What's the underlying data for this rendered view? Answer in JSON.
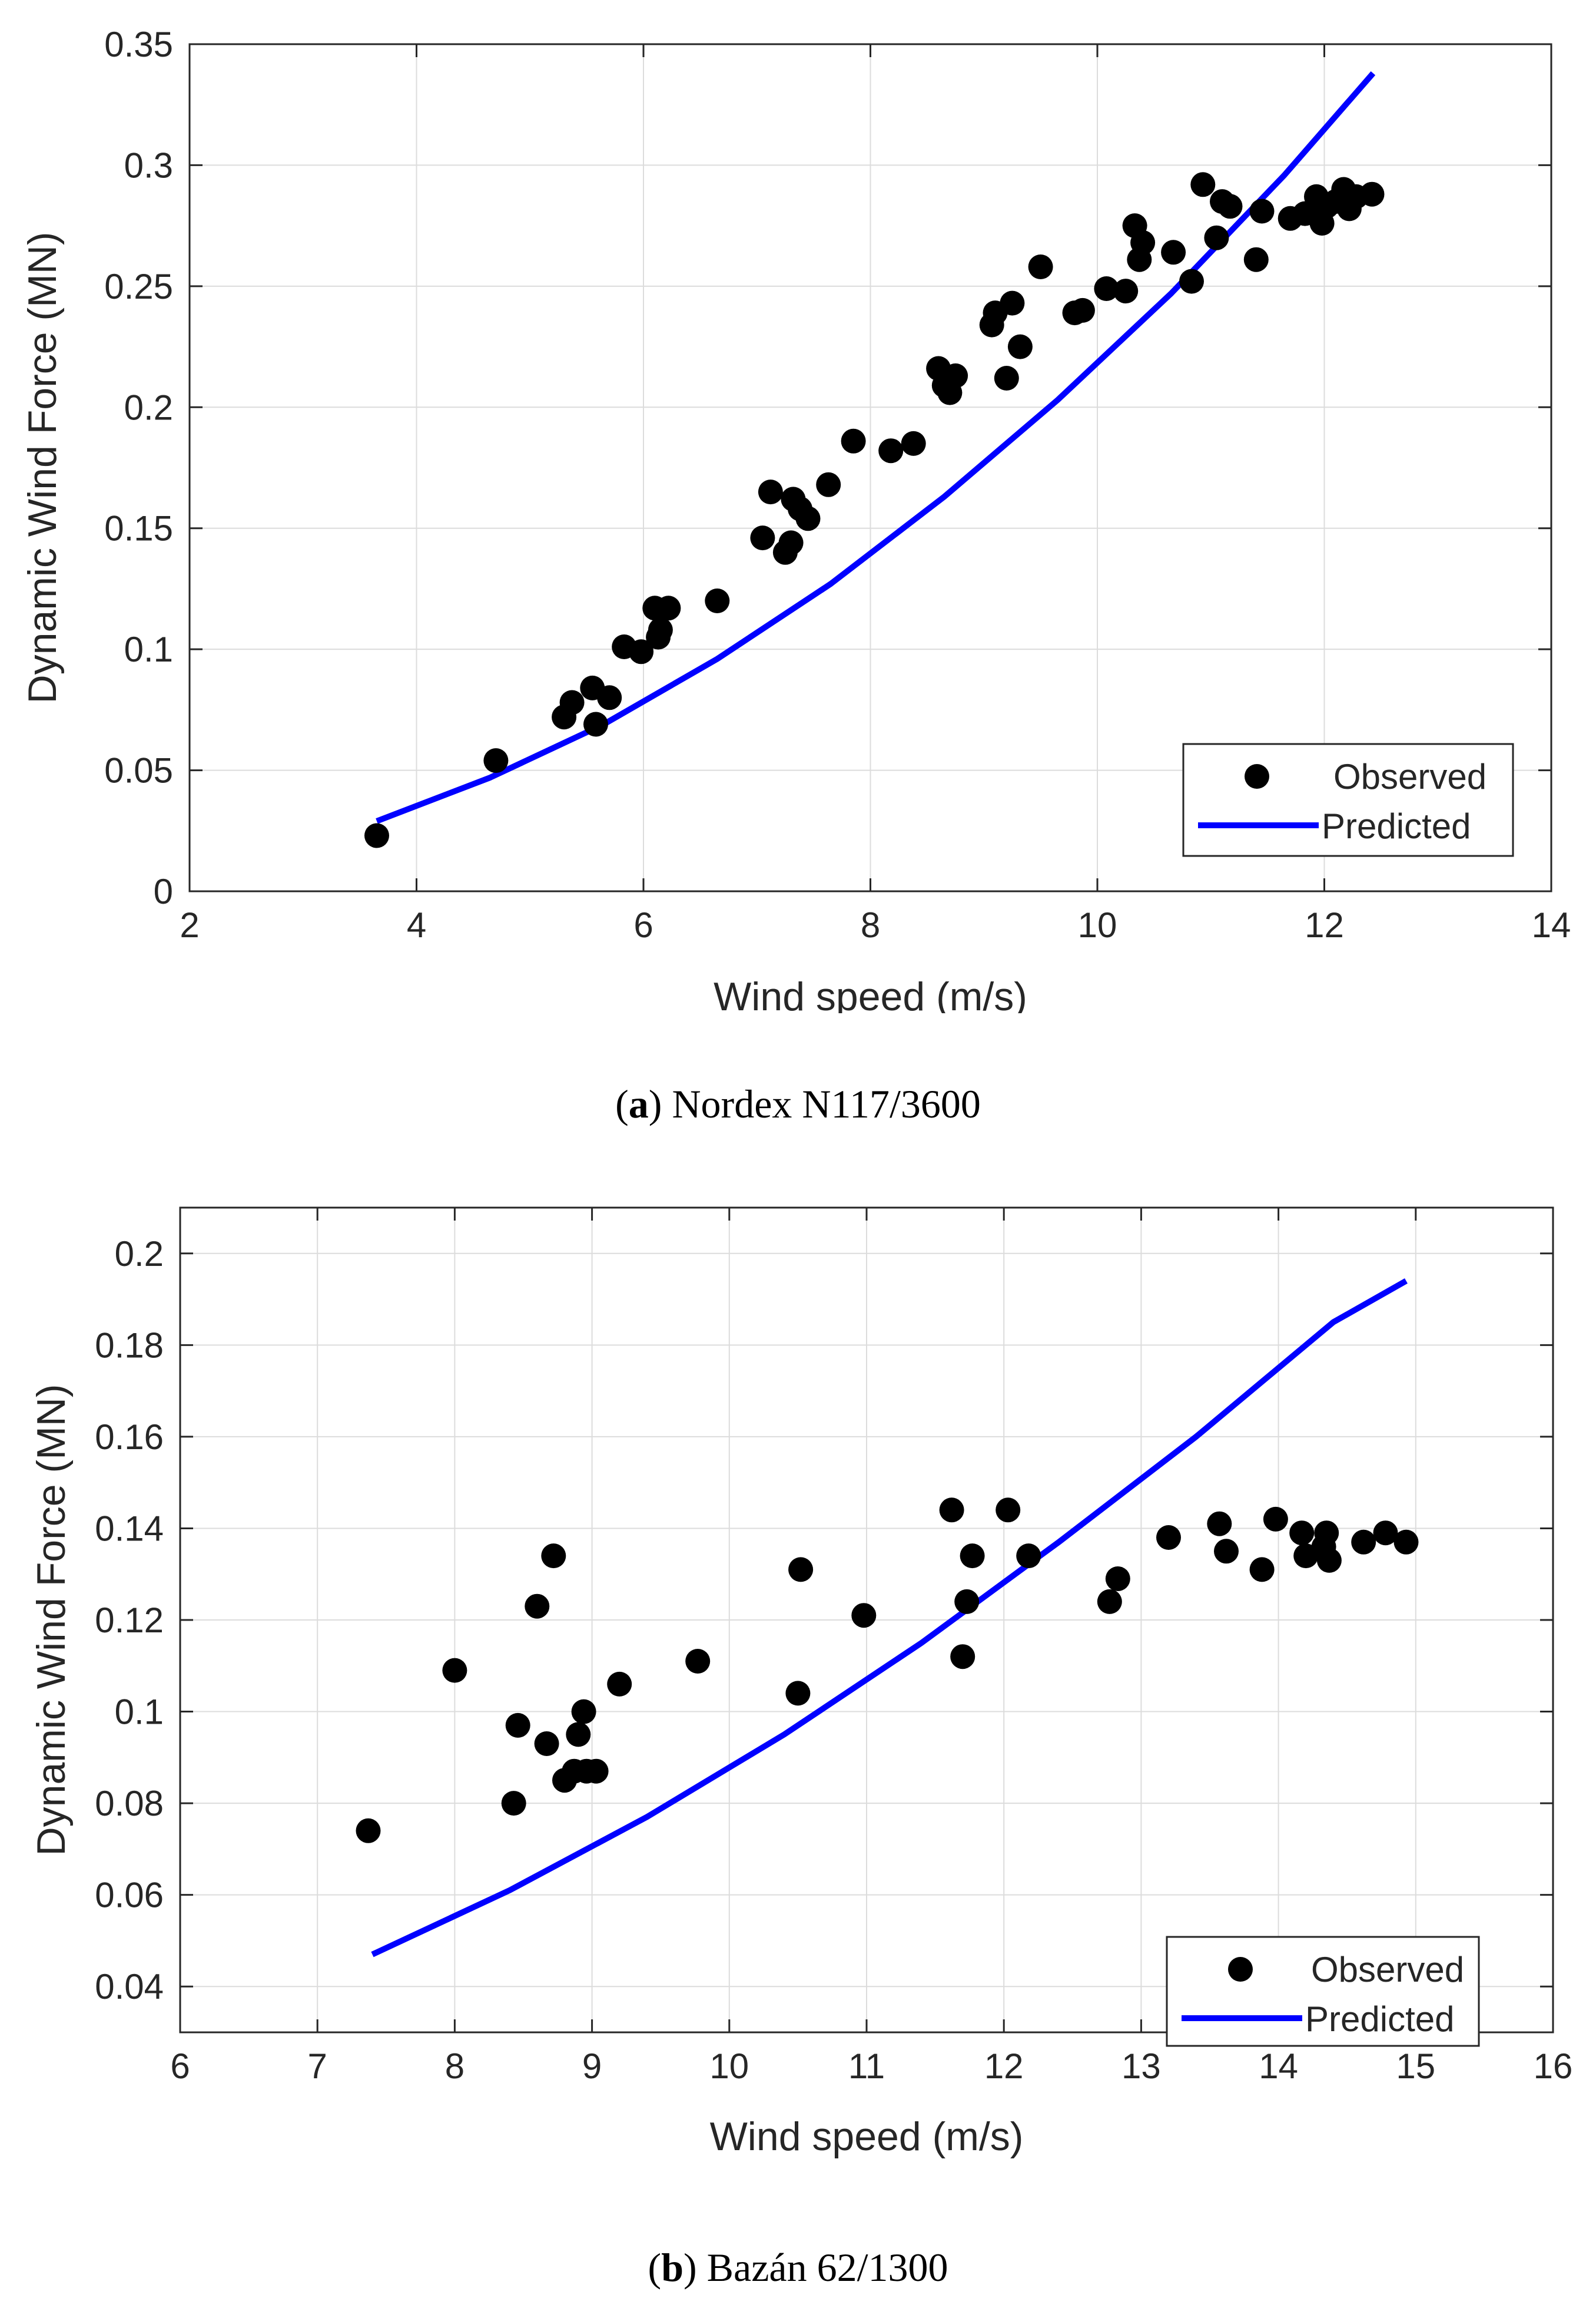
{
  "chart_data": [
    {
      "type": "scatter",
      "caption": {
        "letter": "a",
        "text": "Nordex N117/3600"
      },
      "xlabel": "Wind speed (m/s)",
      "ylabel": "Dynamic Wind Force (MN)",
      "xlim": [
        2,
        14
      ],
      "ylim": [
        0,
        0.35
      ],
      "xticks": [
        2,
        4,
        6,
        8,
        10,
        12,
        14
      ],
      "xtick_labels": [
        "2",
        "4",
        "6",
        "8",
        "10",
        "12",
        "14"
      ],
      "yticks": [
        0,
        0.05,
        0.1,
        0.15,
        0.2,
        0.25,
        0.3,
        0.35
      ],
      "ytick_labels": [
        "0",
        "0.05",
        "0.1",
        "0.15",
        "0.2",
        "0.25",
        "0.3",
        "0.35"
      ],
      "grid": true,
      "legend": {
        "position": "bottom-right",
        "observed": "Observed",
        "predicted": "Predicted"
      },
      "colors": {
        "observed": "#000000",
        "predicted": "#0000ff"
      },
      "series": [
        {
          "name": "Observed",
          "points": [
            [
              3.65,
              0.023
            ],
            [
              4.7,
              0.054
            ],
            [
              5.3,
              0.072
            ],
            [
              5.37,
              0.078
            ],
            [
              5.55,
              0.084
            ],
            [
              5.58,
              0.069
            ],
            [
              5.7,
              0.08
            ],
            [
              5.83,
              0.101
            ],
            [
              5.98,
              0.099
            ],
            [
              6.1,
              0.117
            ],
            [
              6.13,
              0.105
            ],
            [
              6.15,
              0.108
            ],
            [
              6.22,
              0.117
            ],
            [
              6.65,
              0.12
            ],
            [
              7.05,
              0.146
            ],
            [
              7.12,
              0.165
            ],
            [
              7.25,
              0.14
            ],
            [
              7.3,
              0.144
            ],
            [
              7.32,
              0.162
            ],
            [
              7.38,
              0.158
            ],
            [
              7.45,
              0.154
            ],
            [
              7.63,
              0.168
            ],
            [
              7.85,
              0.186
            ],
            [
              8.18,
              0.182
            ],
            [
              8.38,
              0.185
            ],
            [
              8.6,
              0.216
            ],
            [
              8.65,
              0.209
            ],
            [
              8.7,
              0.206
            ],
            [
              8.75,
              0.213
            ],
            [
              9.07,
              0.234
            ],
            [
              9.1,
              0.239
            ],
            [
              9.2,
              0.212
            ],
            [
              9.25,
              0.243
            ],
            [
              9.32,
              0.225
            ],
            [
              9.5,
              0.258
            ],
            [
              9.8,
              0.239
            ],
            [
              9.87,
              0.24
            ],
            [
              10.08,
              0.249
            ],
            [
              10.25,
              0.248
            ],
            [
              10.33,
              0.275
            ],
            [
              10.37,
              0.261
            ],
            [
              10.4,
              0.268
            ],
            [
              10.67,
              0.264
            ],
            [
              10.83,
              0.252
            ],
            [
              10.93,
              0.292
            ],
            [
              11.05,
              0.27
            ],
            [
              11.1,
              0.285
            ],
            [
              11.17,
              0.283
            ],
            [
              11.4,
              0.261
            ],
            [
              11.45,
              0.281
            ],
            [
              11.7,
              0.278
            ],
            [
              11.83,
              0.28
            ],
            [
              11.93,
              0.287
            ],
            [
              11.98,
              0.276
            ],
            [
              12.02,
              0.283
            ],
            [
              12.1,
              0.285
            ],
            [
              12.17,
              0.29
            ],
            [
              12.22,
              0.282
            ],
            [
              12.28,
              0.287
            ],
            [
              12.42,
              0.288
            ]
          ]
        },
        {
          "name": "Predicted",
          "points": [
            [
              3.65,
              0.029
            ],
            [
              4.65,
              0.047
            ],
            [
              5.65,
              0.069
            ],
            [
              6.65,
              0.096
            ],
            [
              7.65,
              0.127
            ],
            [
              8.65,
              0.163
            ],
            [
              9.65,
              0.203
            ],
            [
              10.65,
              0.247
            ],
            [
              11.65,
              0.296
            ],
            [
              12.43,
              0.338
            ]
          ]
        }
      ]
    },
    {
      "type": "scatter",
      "caption": {
        "letter": "b",
        "text": "Bazán 62/1300"
      },
      "xlabel": "Wind speed (m/s)",
      "ylabel": "Dynamic Wind Force (MN)",
      "xlim": [
        6,
        16
      ],
      "ylim": [
        0.03,
        0.21
      ],
      "xticks": [
        6,
        7,
        8,
        9,
        10,
        11,
        12,
        13,
        14,
        15,
        16
      ],
      "xtick_labels": [
        "6",
        "7",
        "8",
        "9",
        "10",
        "11",
        "12",
        "13",
        "14",
        "15",
        "16"
      ],
      "yticks": [
        0.04,
        0.06,
        0.08,
        0.1,
        0.12,
        0.14,
        0.16,
        0.18,
        0.2
      ],
      "ytick_labels": [
        "0.04",
        "0.06",
        "0.08",
        "0.1",
        "0.12",
        "0.14",
        "0.16",
        "0.18",
        "0.2"
      ],
      "grid": true,
      "legend": {
        "position": "bottom-right",
        "observed": "Observed",
        "predicted": "Predicted"
      },
      "colors": {
        "observed": "#000000",
        "predicted": "#0000ff"
      },
      "series": [
        {
          "name": "Observed",
          "points": [
            [
              7.37,
              0.074
            ],
            [
              8.0,
              0.109
            ],
            [
              8.43,
              0.08
            ],
            [
              8.46,
              0.097
            ],
            [
              8.6,
              0.123
            ],
            [
              8.67,
              0.093
            ],
            [
              8.72,
              0.134
            ],
            [
              8.8,
              0.085
            ],
            [
              8.87,
              0.087
            ],
            [
              8.9,
              0.095
            ],
            [
              8.94,
              0.1
            ],
            [
              8.96,
              0.087
            ],
            [
              9.03,
              0.087
            ],
            [
              9.2,
              0.106
            ],
            [
              9.77,
              0.111
            ],
            [
              10.5,
              0.104
            ],
            [
              10.52,
              0.131
            ],
            [
              10.98,
              0.121
            ],
            [
              11.62,
              0.144
            ],
            [
              11.7,
              0.112
            ],
            [
              11.73,
              0.124
            ],
            [
              11.77,
              0.134
            ],
            [
              12.03,
              0.144
            ],
            [
              12.18,
              0.134
            ],
            [
              12.77,
              0.124
            ],
            [
              12.83,
              0.129
            ],
            [
              13.2,
              0.138
            ],
            [
              13.57,
              0.141
            ],
            [
              13.62,
              0.135
            ],
            [
              13.88,
              0.131
            ],
            [
              13.98,
              0.142
            ],
            [
              14.17,
              0.139
            ],
            [
              14.2,
              0.134
            ],
            [
              14.33,
              0.136
            ],
            [
              14.35,
              0.139
            ],
            [
              14.37,
              0.133
            ],
            [
              14.62,
              0.137
            ],
            [
              14.78,
              0.139
            ],
            [
              14.93,
              0.137
            ]
          ]
        },
        {
          "name": "Predicted",
          "points": [
            [
              7.4,
              0.047
            ],
            [
              8.4,
              0.061
            ],
            [
              9.4,
              0.077
            ],
            [
              10.4,
              0.095
            ],
            [
              11.4,
              0.115
            ],
            [
              12.4,
              0.137
            ],
            [
              13.4,
              0.16
            ],
            [
              14.4,
              0.185
            ],
            [
              14.93,
              0.194
            ]
          ]
        }
      ]
    }
  ]
}
